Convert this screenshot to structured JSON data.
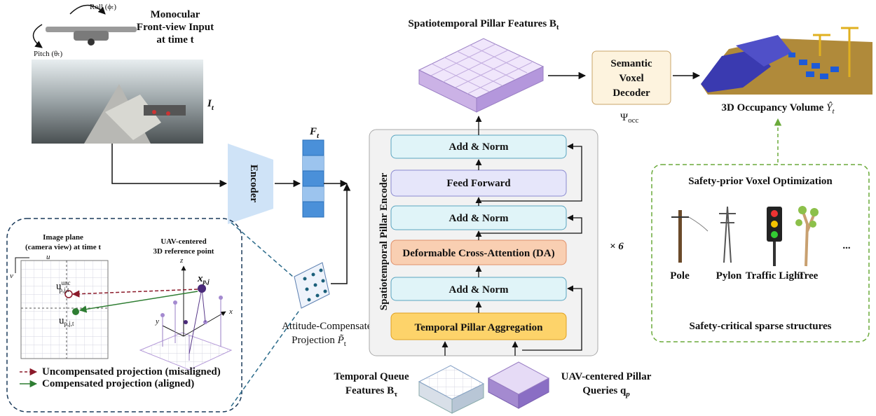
{
  "input": {
    "roll": "Roll (ϕₜ)",
    "pitch": "Pitch (θₜ)",
    "title": [
      "Monocular",
      "Front-view Input",
      "at time t"
    ],
    "image_label": {
      "main": "I",
      "sub": "t"
    }
  },
  "encoder": {
    "label": "Encoder",
    "feature": {
      "main": "F",
      "sub": "t"
    }
  },
  "projection": {
    "label": [
      "Attitude-Compensated",
      "Projection"
    ],
    "symbol": {
      "main": "P̃",
      "sub": "t"
    }
  },
  "pillar_encoder": {
    "title": "Spatiotemporal Pillar Encoder",
    "blocks": [
      "Add & Norm",
      "Feed Forward",
      "Add & Norm",
      "Deformable Cross-Attention (DA)",
      "Add & Norm",
      "Temporal Pillar Aggregation"
    ],
    "repeat": "× 6"
  },
  "pillar_features": {
    "main": "Spatiotemporal Pillar Features B",
    "sub": "t"
  },
  "decoder": {
    "label": [
      "Semantic",
      "Voxel",
      "Decoder"
    ],
    "symbol": {
      "main": "Ψ",
      "sub": "occ"
    }
  },
  "output": {
    "main": "3D Occupancy Volume ",
    "symbol": "Ŷ",
    "sub": "t"
  },
  "safety": {
    "title": "Safety-prior Voxel Optimization",
    "items": [
      "Pole",
      "Pylon",
      "Traffic Light",
      "Tree"
    ],
    "more": "...",
    "caption": "Safety-critical sparse structures"
  },
  "queries": {
    "temporal": {
      "lines": [
        "Temporal Queue",
        "Features B"
      ],
      "sub": "τ"
    },
    "pillar": {
      "lines": [
        "UAV-centered Pillar",
        "Queries q"
      ],
      "sub": "p"
    }
  },
  "inset": {
    "image_plane": [
      "Image plane",
      "(camera view) at time t"
    ],
    "reference": [
      "UAV-centered",
      "3D reference point"
    ],
    "axes": {
      "u": "u",
      "v": "v",
      "x": "x",
      "y": "y",
      "z": "z"
    },
    "point": {
      "main": "x",
      "sub": "p,j"
    },
    "unc": {
      "main": "u",
      "sup": "unc",
      "sub": "p,j,t"
    },
    "comp": {
      "main": "u",
      "sub": "p,j,t"
    },
    "legend": [
      "Uncompensated projection (misaligned)",
      "Compensated projection (aligned)"
    ]
  }
}
